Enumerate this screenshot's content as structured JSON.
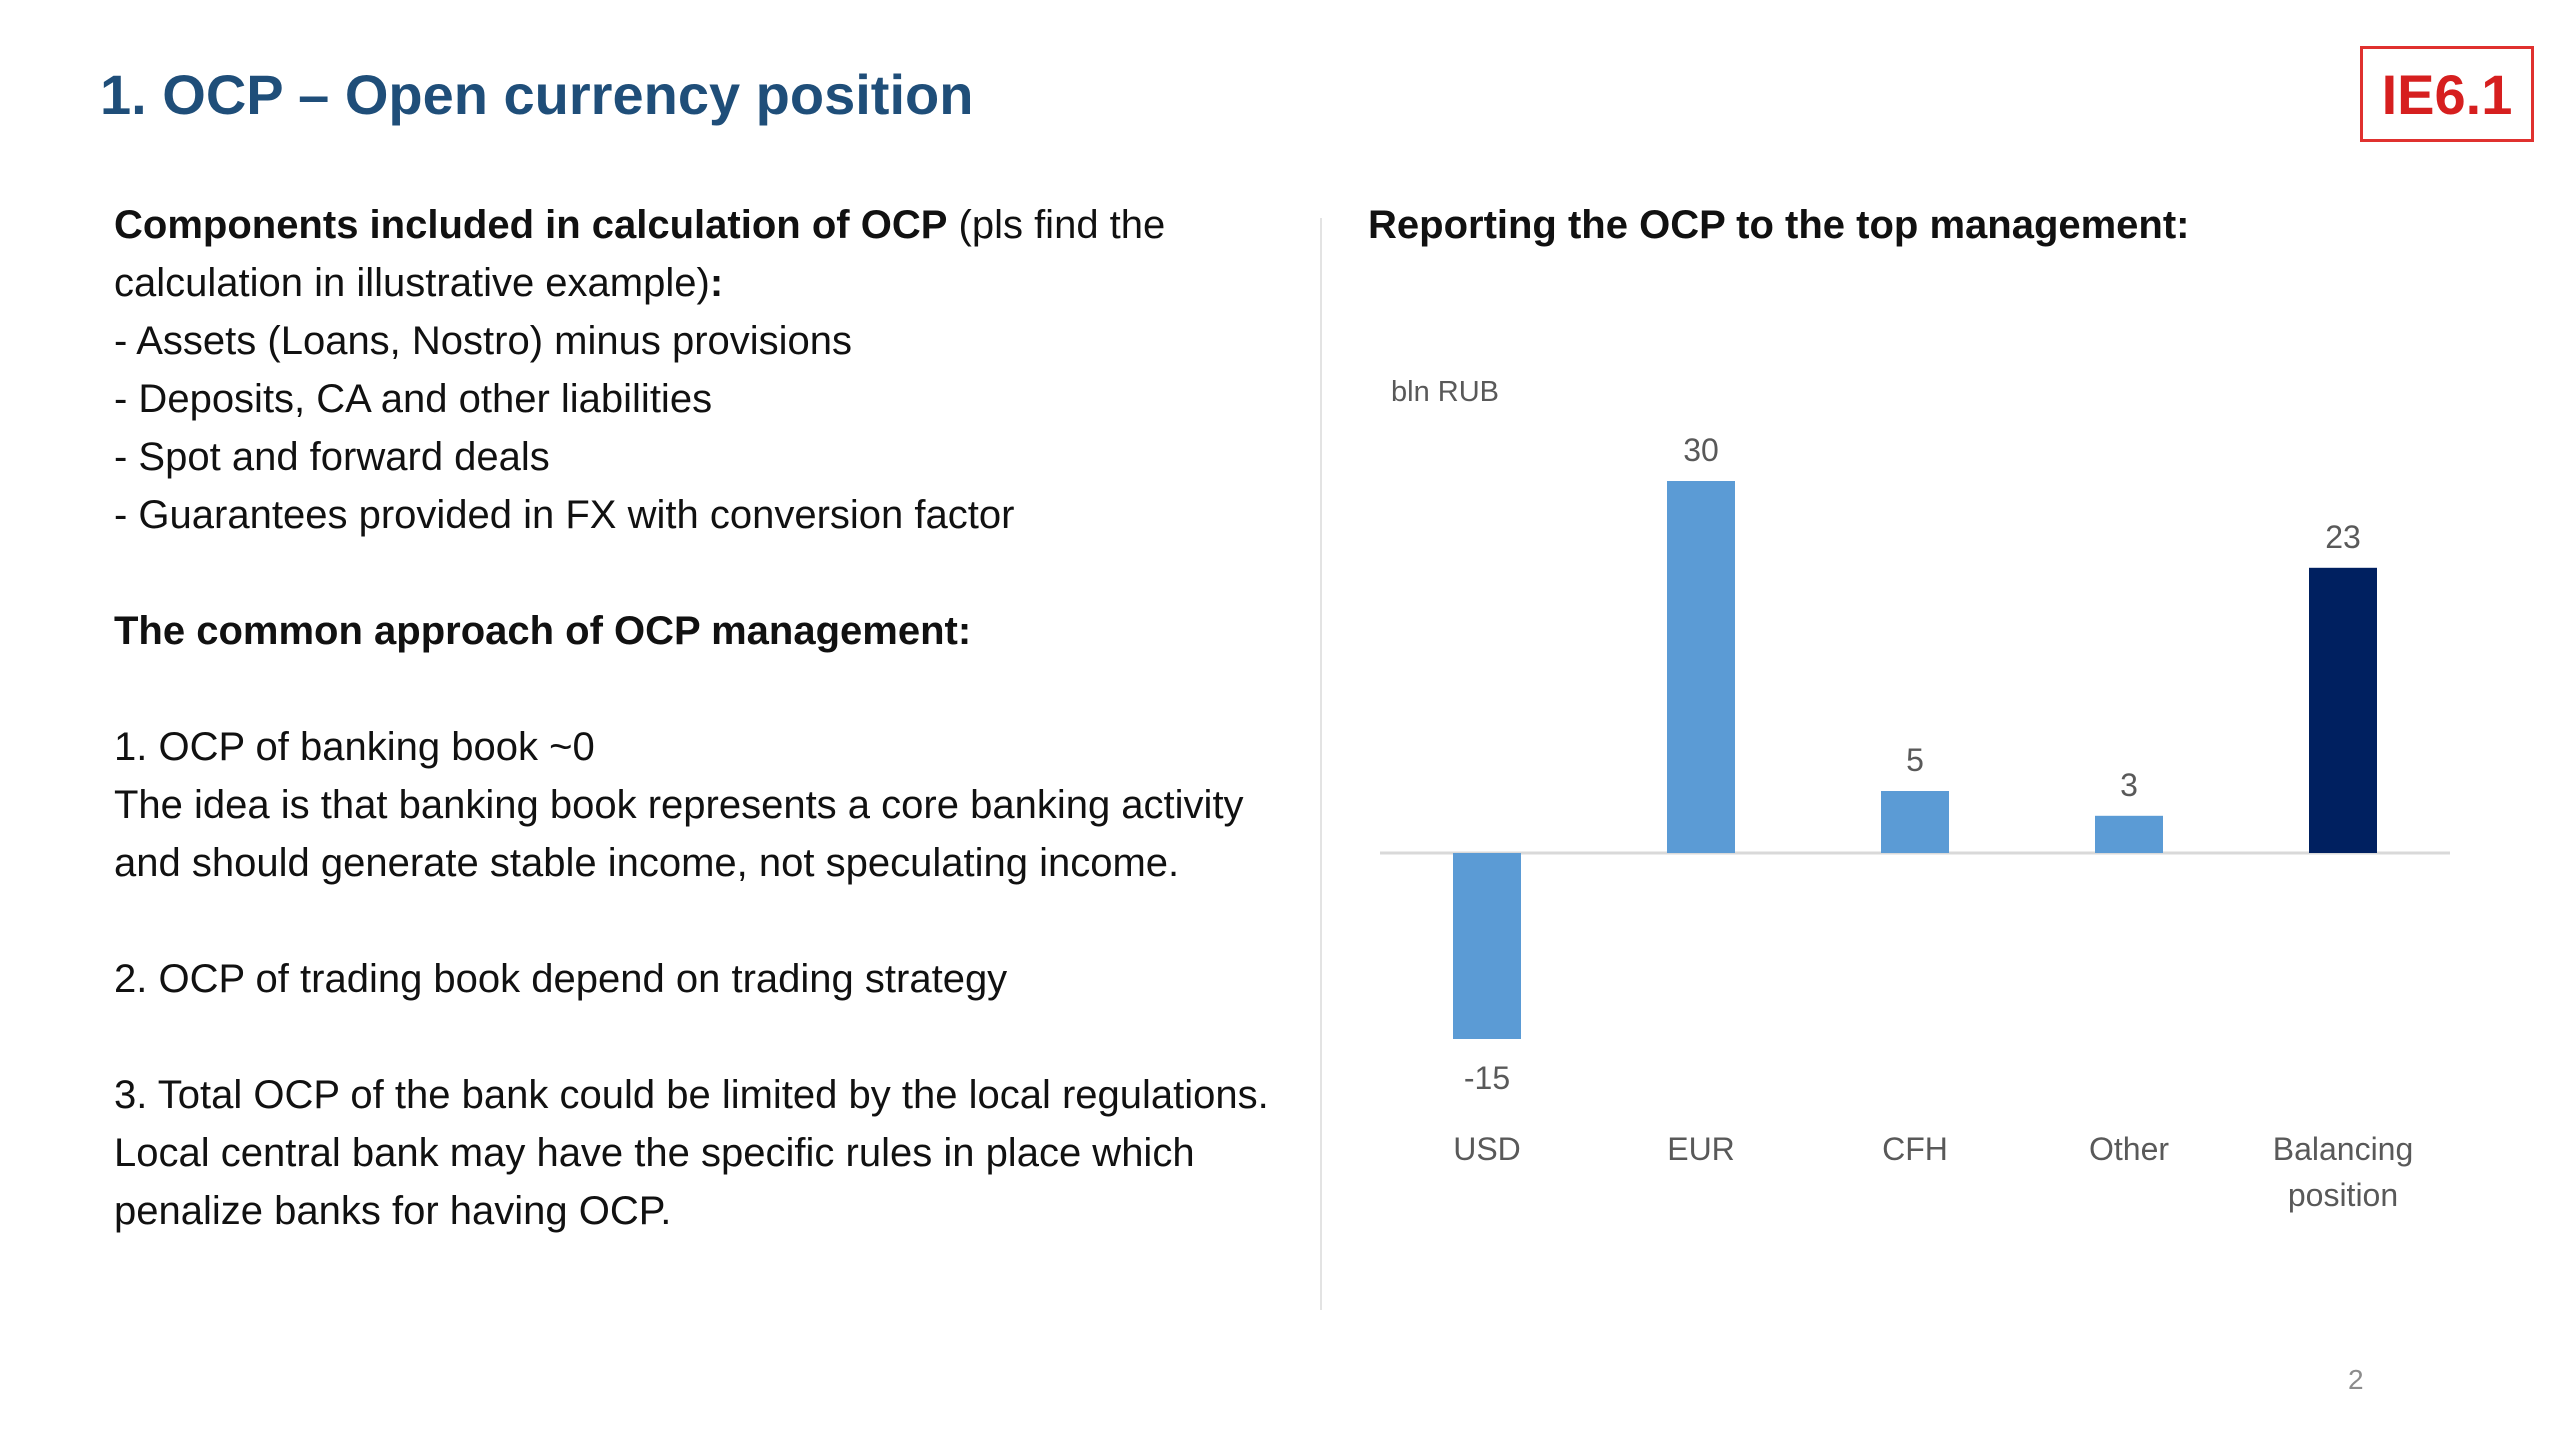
{
  "slide": {
    "title": "1. OCP – Open currency position",
    "tag": "IE6.1",
    "page_number": "2"
  },
  "left": {
    "p1_bold": "Components included in calculation of OCP",
    "p1_rest": " (pls find the calculation in illustrative example)",
    "p1_colon": ":",
    "bullets": [
      "- Assets (Loans, Nostro) minus provisions",
      "- Deposits, CA and other liabilities",
      "- Spot and forward deals",
      "- Guarantees provided in FX with conversion factor"
    ],
    "approach_heading": "The common approach of OCP management:",
    "point1_title": "1. OCP of banking book ~0",
    "point1_body": "The idea is that banking book represents a core banking activity and should generate stable income, not speculating income.",
    "point2": "2. OCP of trading book depend on trading strategy",
    "point3": "3. Total OCP of the bank could be limited by the local regulations. Local central bank may have the specific rules in place which penalize banks for having OCP."
  },
  "right": {
    "heading": "Reporting the OCP to the top management:"
  },
  "chart_data": {
    "type": "bar",
    "unit_label": "bln RUB",
    "categories": [
      "USD",
      "EUR",
      "CFH",
      "Other",
      "Balancing position"
    ],
    "values": [
      -15,
      30,
      5,
      3,
      23
    ],
    "data_labels": [
      "-15",
      "30",
      "5",
      "3",
      "23"
    ],
    "colors": [
      "#5b9bd5",
      "#5b9bd5",
      "#5b9bd5",
      "#5b9bd5",
      "#002060"
    ],
    "label_color": "#595959",
    "axis_color": "#d9d9d9",
    "ylim": [
      -15,
      30
    ],
    "grid": false,
    "legend": "none"
  }
}
